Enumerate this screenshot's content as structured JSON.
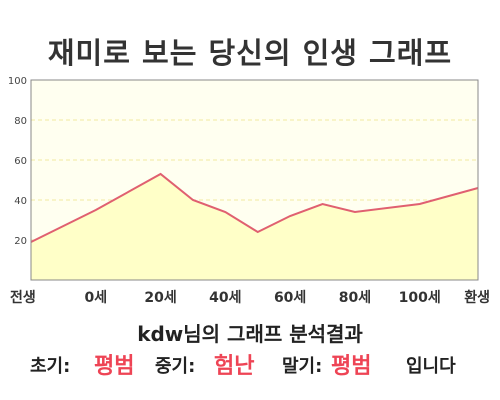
{
  "title": "재미로 보는 당신의 인생 그래프",
  "chart_data": {
    "type": "area",
    "categories": [
      "전생",
      "0세",
      "20세",
      "40세",
      "60세",
      "80세",
      "100세",
      "환생"
    ],
    "x": [
      -20,
      0,
      20,
      30,
      40,
      50,
      60,
      70,
      80,
      100,
      118
    ],
    "values": [
      19,
      35,
      53,
      40,
      34,
      24,
      32,
      38,
      34,
      38,
      46
    ],
    "y_ticks": [
      20,
      40,
      60,
      80,
      100
    ],
    "ylim": [
      0,
      100
    ],
    "grid": true,
    "colors": {
      "line": "#e06070",
      "fill": "#ffffc8",
      "plot_bg": "#fffff0",
      "grid": "#f0e8a0"
    }
  },
  "summary": {
    "user": "kdw",
    "text": "님의 그래프 분석결과"
  },
  "result": {
    "early_label": "초기:",
    "early_value": "평범",
    "mid_label": "중기:",
    "mid_value": "험난",
    "late_label": "말기:",
    "late_value": "평범",
    "ending": "입니다"
  }
}
